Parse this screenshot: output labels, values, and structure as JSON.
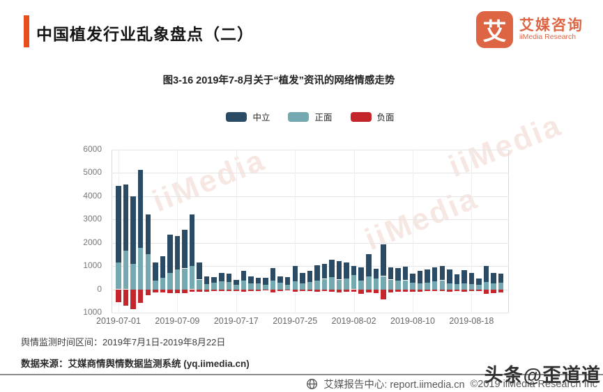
{
  "header": {
    "title": "中国植发行业乱象盘点（二）",
    "accent_color": "#e94f1d",
    "logo": {
      "symbol": "艾",
      "name_cn": "艾媒咨询",
      "name_en": "iiMedia Research",
      "color": "#dd6543"
    }
  },
  "chart_data": {
    "type": "bar",
    "stacked": true,
    "title": "图3-16 2019年7-8月关于“植发”资讯的网络情感走势",
    "legend_position": "top",
    "grid": true,
    "ylim": [
      -1000,
      6000
    ],
    "ytick_step": 1000,
    "ytick_labels": [
      "6000",
      "5000",
      "4000",
      "3000",
      "2000",
      "1000",
      "0",
      "1000"
    ],
    "xtick_every": 8,
    "xtick_labels": [
      "2019-07-01",
      "2019-07-09",
      "2019-07-17",
      "2019-07-25",
      "2019-08-02",
      "2019-08-10",
      "2019-08-18"
    ],
    "x": [
      "2019-07-01",
      "2019-07-02",
      "2019-07-03",
      "2019-07-04",
      "2019-07-05",
      "2019-07-06",
      "2019-07-07",
      "2019-07-08",
      "2019-07-09",
      "2019-07-10",
      "2019-07-11",
      "2019-07-12",
      "2019-07-13",
      "2019-07-14",
      "2019-07-15",
      "2019-07-16",
      "2019-07-17",
      "2019-07-18",
      "2019-07-19",
      "2019-07-20",
      "2019-07-21",
      "2019-07-22",
      "2019-07-23",
      "2019-07-24",
      "2019-07-25",
      "2019-07-26",
      "2019-07-27",
      "2019-07-28",
      "2019-07-29",
      "2019-07-30",
      "2019-07-31",
      "2019-08-01",
      "2019-08-02",
      "2019-08-03",
      "2019-08-04",
      "2019-08-05",
      "2019-08-06",
      "2019-08-07",
      "2019-08-08",
      "2019-08-09",
      "2019-08-10",
      "2019-08-11",
      "2019-08-12",
      "2019-08-13",
      "2019-08-14",
      "2019-08-15",
      "2019-08-16",
      "2019-08-17",
      "2019-08-18",
      "2019-08-19",
      "2019-08-20",
      "2019-08-21",
      "2019-08-22"
    ],
    "series": [
      {
        "name": "中立",
        "role": "neutral",
        "color": "#2b4a63",
        "values": [
          3300,
          2830,
          2900,
          3350,
          1710,
          770,
          920,
          1630,
          1450,
          1670,
          2220,
          730,
          330,
          250,
          370,
          340,
          230,
          420,
          310,
          240,
          310,
          540,
          270,
          320,
          670,
          450,
          470,
          680,
          640,
          750,
          800,
          680,
          400,
          580,
          950,
          420,
          1350,
          530,
          550,
          580,
          400,
          540,
          560,
          600,
          610,
          580,
          430,
          550,
          480,
          280,
          700,
          450,
          380
        ]
      },
      {
        "name": "正面",
        "role": "positive",
        "color": "#74a9b2",
        "values": [
          1150,
          1670,
          1100,
          1780,
          1520,
          380,
          500,
          720,
          850,
          900,
          1000,
          420,
          230,
          280,
          340,
          330,
          190,
          380,
          250,
          250,
          200,
          380,
          290,
          200,
          350,
          270,
          320,
          370,
          450,
          520,
          420,
          470,
          620,
          370,
          570,
          470,
          570,
          420,
          370,
          390,
          280,
          250,
          290,
          350,
          390,
          270,
          220,
          270,
          240,
          190,
          320,
          270,
          290
        ]
      },
      {
        "name": "负面",
        "role": "negative",
        "color": "#c5262c",
        "values": [
          -550,
          -700,
          -850,
          -580,
          -250,
          -120,
          -120,
          -150,
          -150,
          -150,
          -100,
          -100,
          -90,
          -70,
          -70,
          -70,
          -60,
          -110,
          -70,
          -70,
          -50,
          -130,
          -80,
          -50,
          -110,
          -60,
          -60,
          -100,
          -80,
          -100,
          -130,
          -110,
          -110,
          -180,
          -130,
          -150,
          -430,
          -130,
          -110,
          -110,
          -90,
          -110,
          -80,
          -80,
          -80,
          -110,
          -80,
          -110,
          -80,
          -80,
          -180,
          -150,
          -130
        ]
      }
    ]
  },
  "watermarks": {
    "diagonal_text": "iiMedia",
    "toutiao": "头条@歪道道"
  },
  "footer": {
    "monitoring_period": "舆情监测时间区间：2019年7月1日-2019年8月22日",
    "data_source": "数据来源：艾媒商情舆情数据监测系统 (yq.iimedia.cn)"
  },
  "bottom_bar": {
    "report_center": "艾媒报告中心: report.iimedia.cn",
    "copyright": "©2019  iiMedia Research Inc"
  }
}
